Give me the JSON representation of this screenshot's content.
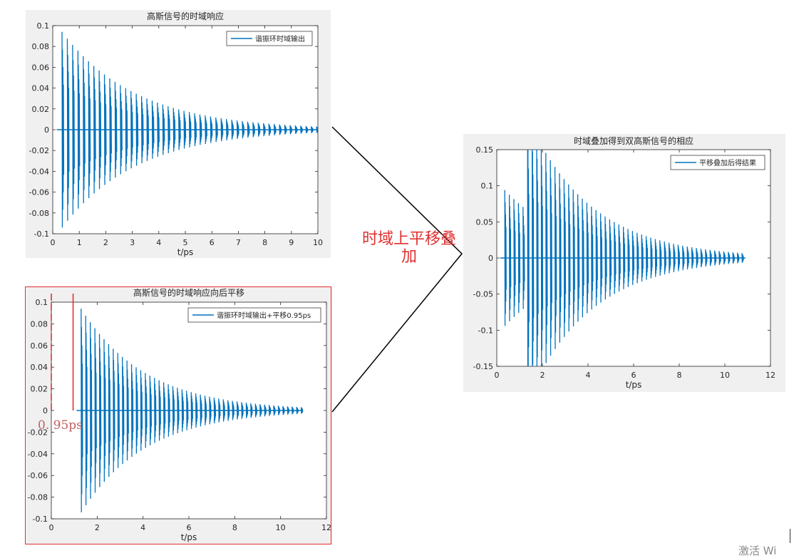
{
  "colors": {
    "series": "#0072bd",
    "figure_bg": "#f0f0f0",
    "annotation": "#e03030",
    "highlight_box": "#e03030",
    "connector": "#000000"
  },
  "annotation": {
    "line1": "时域上平移叠",
    "line2": "加",
    "shift_label": "0. 95ps"
  },
  "watermark_fragment": "激活 Wi",
  "chart_data": [
    {
      "type": "line",
      "title": "高斯信号的时域响应",
      "xlabel": "t/ps",
      "ylabel": "",
      "xlim": [
        0,
        10
      ],
      "ylim": [
        -0.1,
        0.1
      ],
      "x_ticks": [
        "0",
        "1",
        "2",
        "3",
        "4",
        "5",
        "6",
        "7",
        "8",
        "9",
        "10"
      ],
      "y_ticks": [
        "-0.1",
        "-0.08",
        "-0.06",
        "-0.04",
        "-0.02",
        "0",
        "0.02",
        "0.04",
        "0.06",
        "0.08",
        "0.1"
      ],
      "grid": false,
      "legend": "top-right",
      "series": [
        {
          "name": "谐振环时域输出",
          "signal": {
            "onset": 0.3,
            "end": 10.0,
            "pulse_spacing": 0.2,
            "first_peak_time": 0.35,
            "peak_amplitude": 0.094,
            "decay_time_constant": 2.8,
            "oscillation_period": 0.035
          }
        }
      ]
    },
    {
      "type": "line",
      "title": "高斯信号的时域响应向后平移",
      "xlabel": "t/ps",
      "ylabel": "",
      "xlim": [
        0,
        12
      ],
      "ylim": [
        -0.1,
        0.1
      ],
      "x_ticks": [
        "0",
        "2",
        "4",
        "6",
        "8",
        "10",
        "12"
      ],
      "y_ticks": [
        "-0.1",
        "-0.08",
        "-0.06",
        "-0.04",
        "-0.02",
        "0",
        "0.02",
        "0.04",
        "0.06",
        "0.08",
        "0.1"
      ],
      "grid": false,
      "legend": "top-right",
      "shift_marker": {
        "from": 0,
        "to": 0.95,
        "label": "0. 95ps"
      },
      "series": [
        {
          "name": "谐振环时域输出+平移0.95ps",
          "signal": {
            "onset": 1.25,
            "end": 10.9,
            "pulse_spacing": 0.2,
            "first_peak_time": 1.3,
            "peak_amplitude": 0.094,
            "decay_time_constant": 2.8,
            "oscillation_period": 0.035
          }
        }
      ]
    },
    {
      "type": "line",
      "title": "时域叠加得到双高斯信号的相应",
      "xlabel": "t/ps",
      "ylabel": "",
      "xlim": [
        0,
        12
      ],
      "ylim": [
        -0.15,
        0.15
      ],
      "x_ticks": [
        "0",
        "2",
        "4",
        "6",
        "8",
        "10",
        "12"
      ],
      "y_ticks": [
        "-0.15",
        "-0.1",
        "-0.05",
        "0",
        "0.05",
        "0.1",
        "0.15"
      ],
      "grid": false,
      "legend": "top-right",
      "series": [
        {
          "name": "平移叠加后得结果",
          "signal": {
            "onset": 0.3,
            "end": 10.9,
            "pulse_spacing": 0.2,
            "peaks": [
              [
                0.35,
                0.094
              ],
              [
                1.3,
                0.13
              ]
            ],
            "decay_time_constant": 2.8,
            "oscillation_period": 0.035
          }
        }
      ]
    }
  ]
}
